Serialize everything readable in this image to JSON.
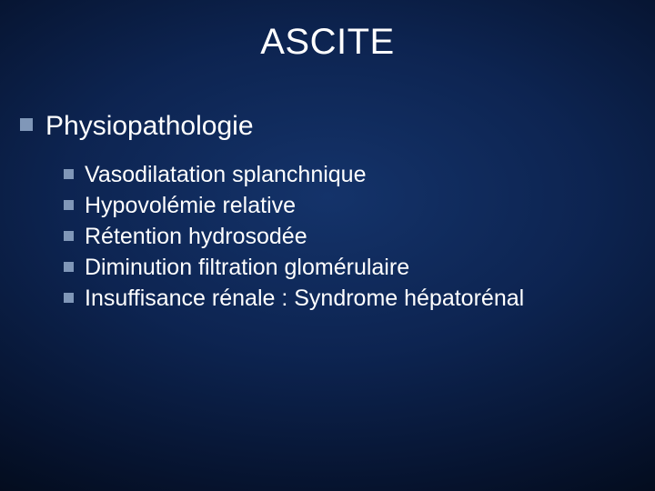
{
  "colors": {
    "background_center": "#14336a",
    "background_mid": "#0d2451",
    "background_outer": "#020814",
    "text": "#ffffff",
    "bullet": "#8097b8"
  },
  "typography": {
    "font_family": "Arial",
    "title_fontsize": 40,
    "level1_fontsize": 30,
    "level2_fontsize": 25
  },
  "slide": {
    "title": "ASCITE",
    "level1": {
      "text": "Physiopathologie",
      "children": [
        {
          "text": "Vasodilatation splanchnique"
        },
        {
          "text": "Hypovolémie relative"
        },
        {
          "text": "Rétention hydrosodée"
        },
        {
          "text": "Diminution filtration glomérulaire"
        },
        {
          "text": "Insuffisance rénale : Syndrome hépatorénal"
        }
      ]
    }
  }
}
